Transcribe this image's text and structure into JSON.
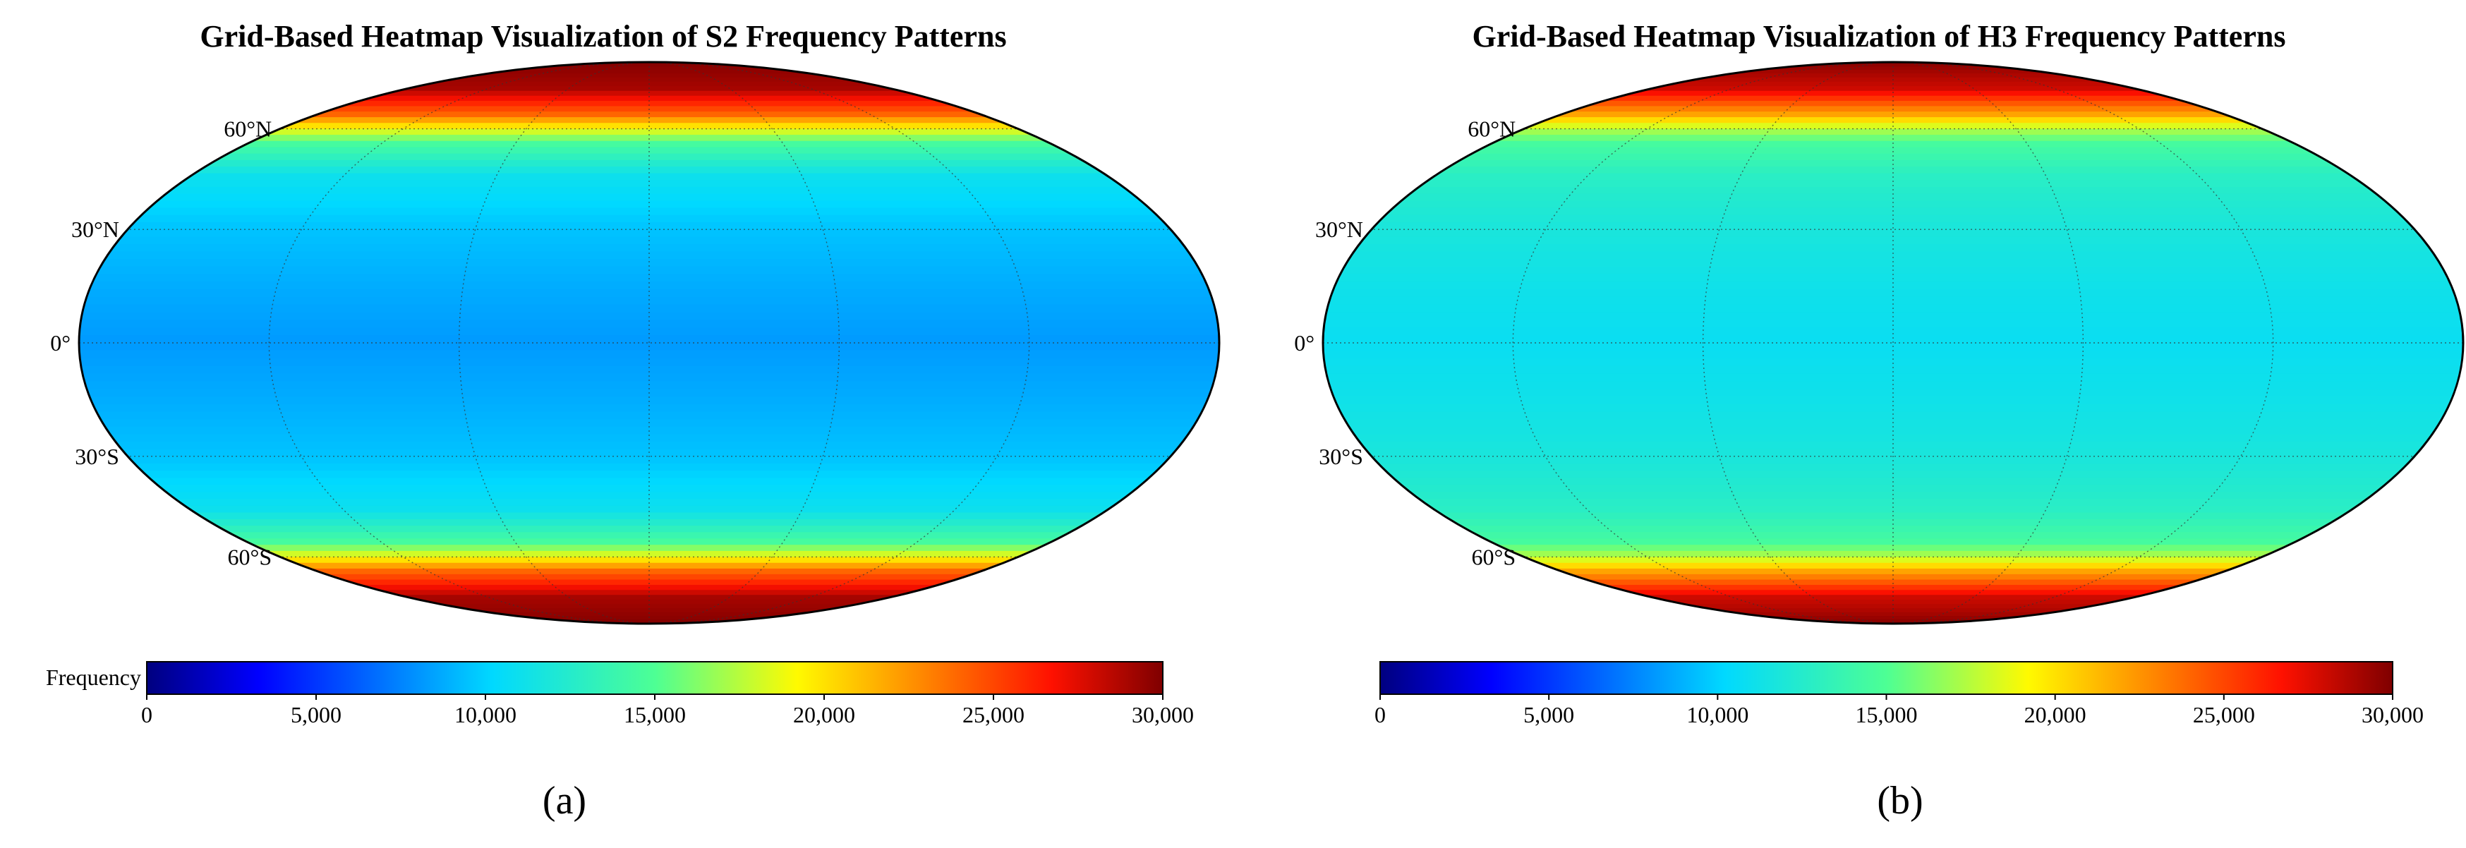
{
  "chart_data": [
    {
      "type": "heatmap",
      "panel_label": "(a)",
      "title": "Grid-Based Heatmap Visualization of S2 Frequency Patterns",
      "projection": "Mollweide world map",
      "lat_labels": [
        "60°N",
        "30°N",
        "0°",
        "30°S",
        "60°S"
      ],
      "colorbar": {
        "label": "Frequency",
        "min": 0,
        "max": 30000,
        "ticks": [
          0,
          5000,
          10000,
          15000,
          20000,
          25000,
          30000
        ],
        "tick_labels": [
          "0",
          "5,000",
          "10,000",
          "15,000",
          "20,000",
          "25,000",
          "30,000"
        ]
      },
      "latitude_profile": {
        "lat": [
          90,
          75,
          65,
          60,
          55,
          45,
          30,
          15,
          0,
          -15,
          -30,
          -45,
          -55,
          -60,
          -65,
          -75,
          -90
        ],
        "frequency": [
          30000,
          29000,
          24000,
          19000,
          14500,
          11000,
          9500,
          8800,
          8200,
          8800,
          9500,
          11000,
          14500,
          19000,
          24000,
          29000,
          30000
        ]
      },
      "grid": true
    },
    {
      "type": "heatmap",
      "panel_label": "(b)",
      "title": "Grid-Based Heatmap Visualization of H3 Frequency Patterns",
      "projection": "Mollweide world map",
      "lat_labels": [
        "60°N",
        "30°N",
        "0°",
        "30°S",
        "60°S"
      ],
      "colorbar": {
        "label": "",
        "min": 0,
        "max": 30000,
        "ticks": [
          0,
          5000,
          10000,
          15000,
          20000,
          25000,
          30000
        ],
        "tick_labels": [
          "0",
          "5,000",
          "10,000",
          "15,000",
          "20,000",
          "25,000",
          "30,000"
        ]
      },
      "latitude_profile": {
        "lat": [
          90,
          75,
          65,
          60,
          55,
          45,
          30,
          15,
          0,
          -15,
          -30,
          -45,
          -55,
          -60,
          -65,
          -75,
          -90
        ],
        "frequency": [
          30000,
          28000,
          22000,
          17500,
          14500,
          12800,
          11800,
          11200,
          10800,
          11200,
          11800,
          12800,
          14500,
          17500,
          22000,
          28000,
          30000
        ]
      },
      "grid": true
    }
  ]
}
